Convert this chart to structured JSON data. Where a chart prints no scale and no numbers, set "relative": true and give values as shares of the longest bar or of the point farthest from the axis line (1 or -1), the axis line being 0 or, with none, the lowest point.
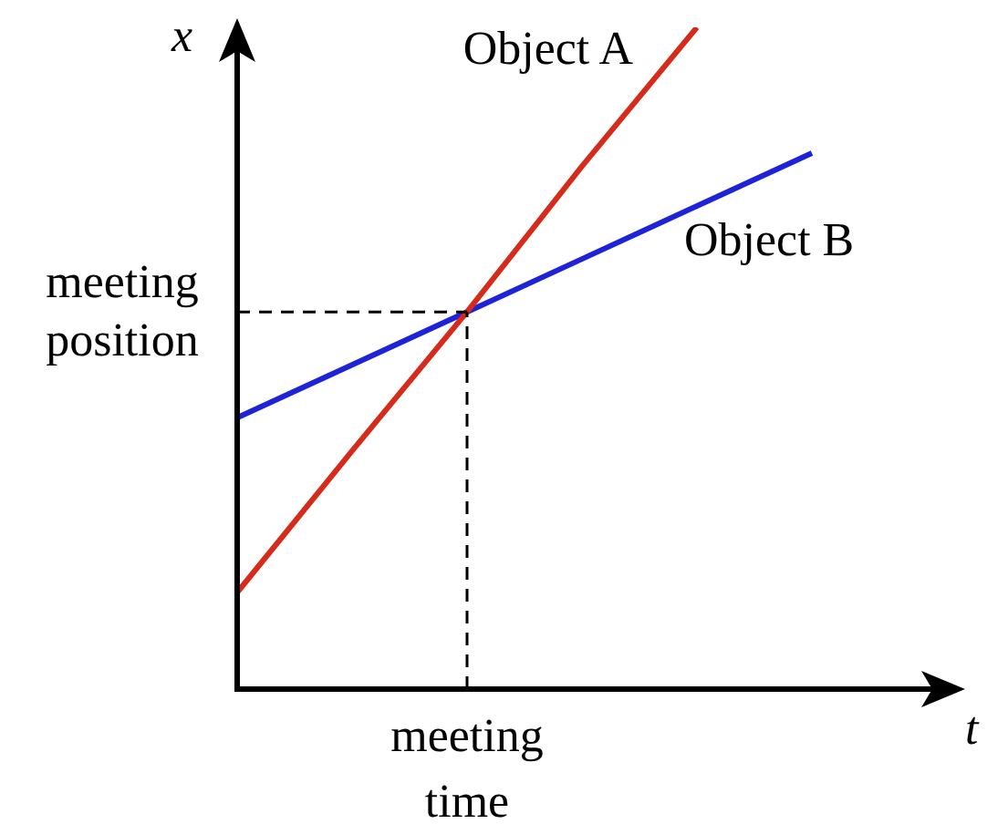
{
  "chart_data": {
    "type": "line",
    "relative": true,
    "xlabel": "t",
    "ylabel": "x",
    "categories": [
      null,
      null,
      null,
      null,
      null,
      null
    ],
    "series": [
      {
        "name": "Object A",
        "color": "#d62a1a",
        "values": [
          0.146,
          0.36,
          0.57,
          0.79,
          1.0,
          null
        ]
      },
      {
        "name": "Object B",
        "color": "#1e22d8",
        "values": [
          0.41,
          0.49,
          0.57,
          0.65,
          0.73,
          0.81
        ]
      }
    ],
    "ref_lines": [
      {
        "axis": "y",
        "value": 0.57,
        "label": "meeting position",
        "line_style": "dashed",
        "color": "#000000"
      }
    ],
    "annotations": [
      "meeting time"
    ],
    "legend": false,
    "marker": "none",
    "line_style": "solid"
  }
}
